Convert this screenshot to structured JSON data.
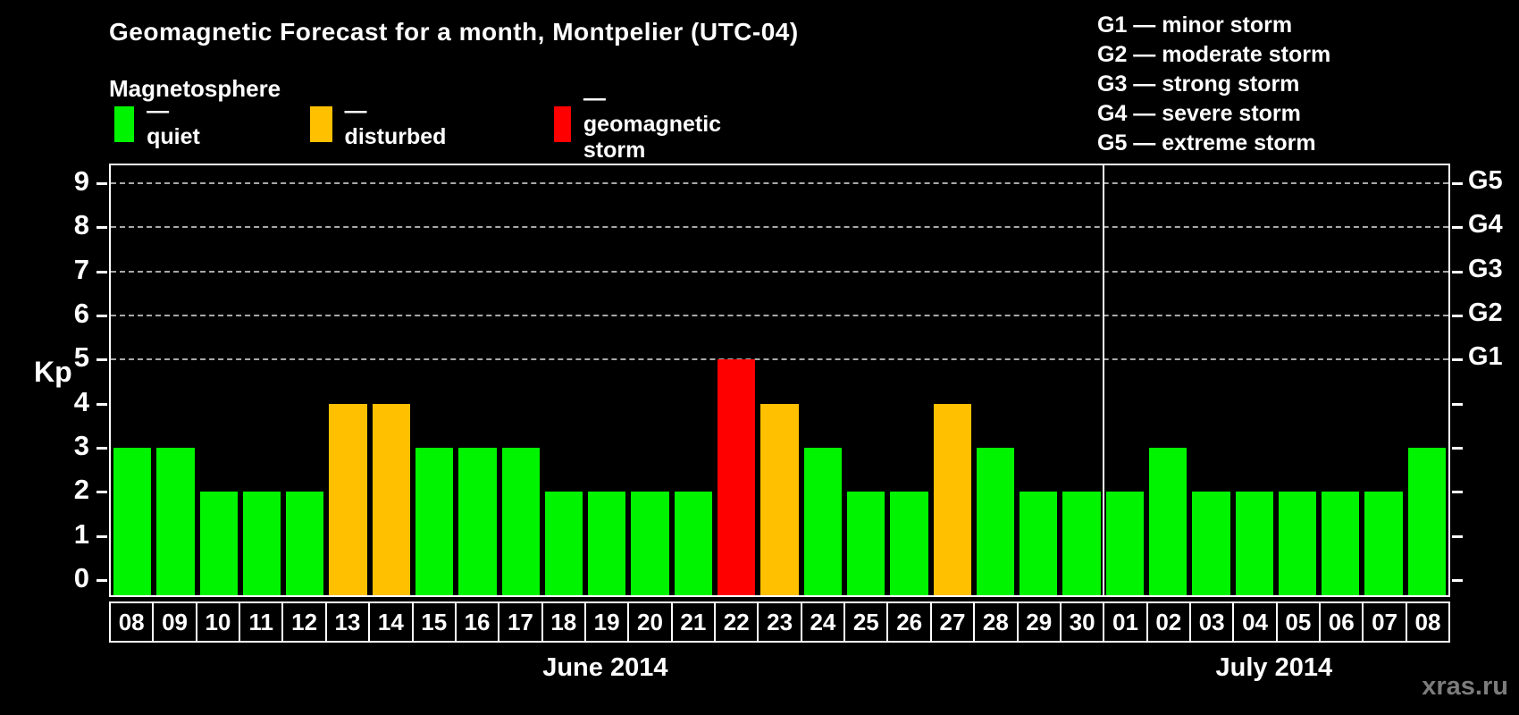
{
  "title": "Geomagnetic Forecast for a month, Montpelier (UTC-04)",
  "legend": {
    "heading": "Magnetosphere",
    "items": [
      {
        "key": "quiet",
        "label": "— quiet",
        "color": "#00f400",
        "x": 128
      },
      {
        "key": "disturbed",
        "label": "— disturbed",
        "color": "#ffc000",
        "x": 347
      },
      {
        "key": "storm",
        "label": "— geomagnetic storm",
        "color": "#ff0000",
        "x": 620
      }
    ]
  },
  "g_legend": {
    "items": [
      "G1 — minor storm",
      "G2 — moderate storm",
      "G3 — strong storm",
      "G4 — severe storm",
      "G5 — extreme storm"
    ]
  },
  "watermark": "xras.ru",
  "chart_data": {
    "type": "bar",
    "title": "Geomagnetic Forecast for a month, Montpelier (UTC-04)",
    "xlabel": "",
    "ylabel": "Kp",
    "ylim": [
      0,
      9
    ],
    "yticks": [
      0,
      1,
      2,
      3,
      4,
      5,
      6,
      7,
      8,
      9
    ],
    "gridlines_at_kp": [
      5,
      6,
      7,
      8,
      9
    ],
    "grid_style": "dashed",
    "right_axis": [
      {
        "kp": 5,
        "label": "G1"
      },
      {
        "kp": 6,
        "label": "G2"
      },
      {
        "kp": 7,
        "label": "G3"
      },
      {
        "kp": 8,
        "label": "G4"
      },
      {
        "kp": 9,
        "label": "G5"
      }
    ],
    "status_colors": {
      "quiet": "#00f400",
      "disturbed": "#ffc000",
      "storm": "#ff0000"
    },
    "months": [
      {
        "label": "June 2014",
        "days": [
          {
            "day": "08",
            "kp": 3,
            "status": "quiet"
          },
          {
            "day": "09",
            "kp": 3,
            "status": "quiet"
          },
          {
            "day": "10",
            "kp": 2,
            "status": "quiet"
          },
          {
            "day": "11",
            "kp": 2,
            "status": "quiet"
          },
          {
            "day": "12",
            "kp": 2,
            "status": "quiet"
          },
          {
            "day": "13",
            "kp": 4,
            "status": "disturbed"
          },
          {
            "day": "14",
            "kp": 4,
            "status": "disturbed"
          },
          {
            "day": "15",
            "kp": 3,
            "status": "quiet"
          },
          {
            "day": "16",
            "kp": 3,
            "status": "quiet"
          },
          {
            "day": "17",
            "kp": 3,
            "status": "quiet"
          },
          {
            "day": "18",
            "kp": 2,
            "status": "quiet"
          },
          {
            "day": "19",
            "kp": 2,
            "status": "quiet"
          },
          {
            "day": "20",
            "kp": 2,
            "status": "quiet"
          },
          {
            "day": "21",
            "kp": 2,
            "status": "quiet"
          },
          {
            "day": "22",
            "kp": 5,
            "status": "storm"
          },
          {
            "day": "23",
            "kp": 4,
            "status": "disturbed"
          },
          {
            "day": "24",
            "kp": 3,
            "status": "quiet"
          },
          {
            "day": "25",
            "kp": 2,
            "status": "quiet"
          },
          {
            "day": "26",
            "kp": 2,
            "status": "quiet"
          },
          {
            "day": "27",
            "kp": 4,
            "status": "disturbed"
          },
          {
            "day": "28",
            "kp": 3,
            "status": "quiet"
          },
          {
            "day": "29",
            "kp": 2,
            "status": "quiet"
          },
          {
            "day": "30",
            "kp": 2,
            "status": "quiet"
          }
        ]
      },
      {
        "label": "July 2014",
        "days": [
          {
            "day": "01",
            "kp": 2,
            "status": "quiet"
          },
          {
            "day": "02",
            "kp": 3,
            "status": "quiet"
          },
          {
            "day": "03",
            "kp": 2,
            "status": "quiet"
          },
          {
            "day": "04",
            "kp": 2,
            "status": "quiet"
          },
          {
            "day": "05",
            "kp": 2,
            "status": "quiet"
          },
          {
            "day": "06",
            "kp": 2,
            "status": "quiet"
          },
          {
            "day": "07",
            "kp": 2,
            "status": "quiet"
          },
          {
            "day": "08",
            "kp": 3,
            "status": "quiet"
          }
        ]
      }
    ]
  }
}
